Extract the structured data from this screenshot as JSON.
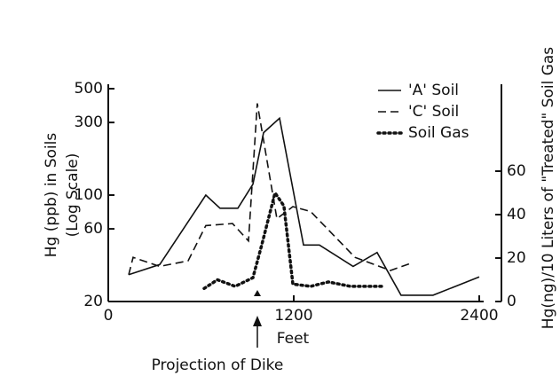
{
  "chart_data": {
    "type": "line",
    "y_label": "Hg (ppb) in Soils",
    "y_label_sub": "(Log Scale)",
    "y2_label": "Hg(ng)/10 Liters of \"Treated\" Soil Gas",
    "x_label": "Feet",
    "annotation": "Projection of Dike",
    "xlim": [
      0,
      2400
    ],
    "xticks": [
      0,
      1200,
      2400
    ],
    "ylim": [
      20,
      500
    ],
    "yticks": [
      20,
      60,
      100,
      300,
      500
    ],
    "log_y": true,
    "y2lim": [
      0,
      100
    ],
    "y2ticks": [
      0,
      20,
      40,
      60
    ],
    "legend": "upper right",
    "series": [
      {
        "name": "'A' Soil",
        "color": "#111111",
        "style": "solid",
        "x": [
          132,
          333,
          631,
          723,
          838,
          936,
          1005,
          1108,
          1263,
          1366,
          1584,
          1739,
          1894,
          2101,
          2400
        ],
        "values": [
          30,
          35,
          100,
          82,
          82,
          118,
          257,
          320,
          47,
          47,
          34,
          42,
          22,
          22,
          29
        ]
      },
      {
        "name": "'C' Soil",
        "color": "#111111",
        "style": "dashed",
        "x": [
          132,
          161,
          333,
          517,
          631,
          804,
          907,
          964,
          1091,
          1194,
          1309,
          1596,
          1825,
          1969
        ],
        "values": [
          30,
          39,
          34,
          37,
          63,
          65,
          50,
          400,
          70,
          84,
          78,
          39,
          32,
          36
        ]
      },
      {
        "name": "Soil Gas",
        "color": "#111111",
        "style": "dotted",
        "axis": "y2",
        "x": [
          620,
          706,
          821,
          936,
          993,
          1079,
          1136,
          1194,
          1309,
          1424,
          1567,
          1768
        ],
        "values": [
          6,
          10,
          7,
          11,
          26,
          50,
          44,
          8,
          7,
          9,
          7,
          7
        ]
      }
    ]
  }
}
